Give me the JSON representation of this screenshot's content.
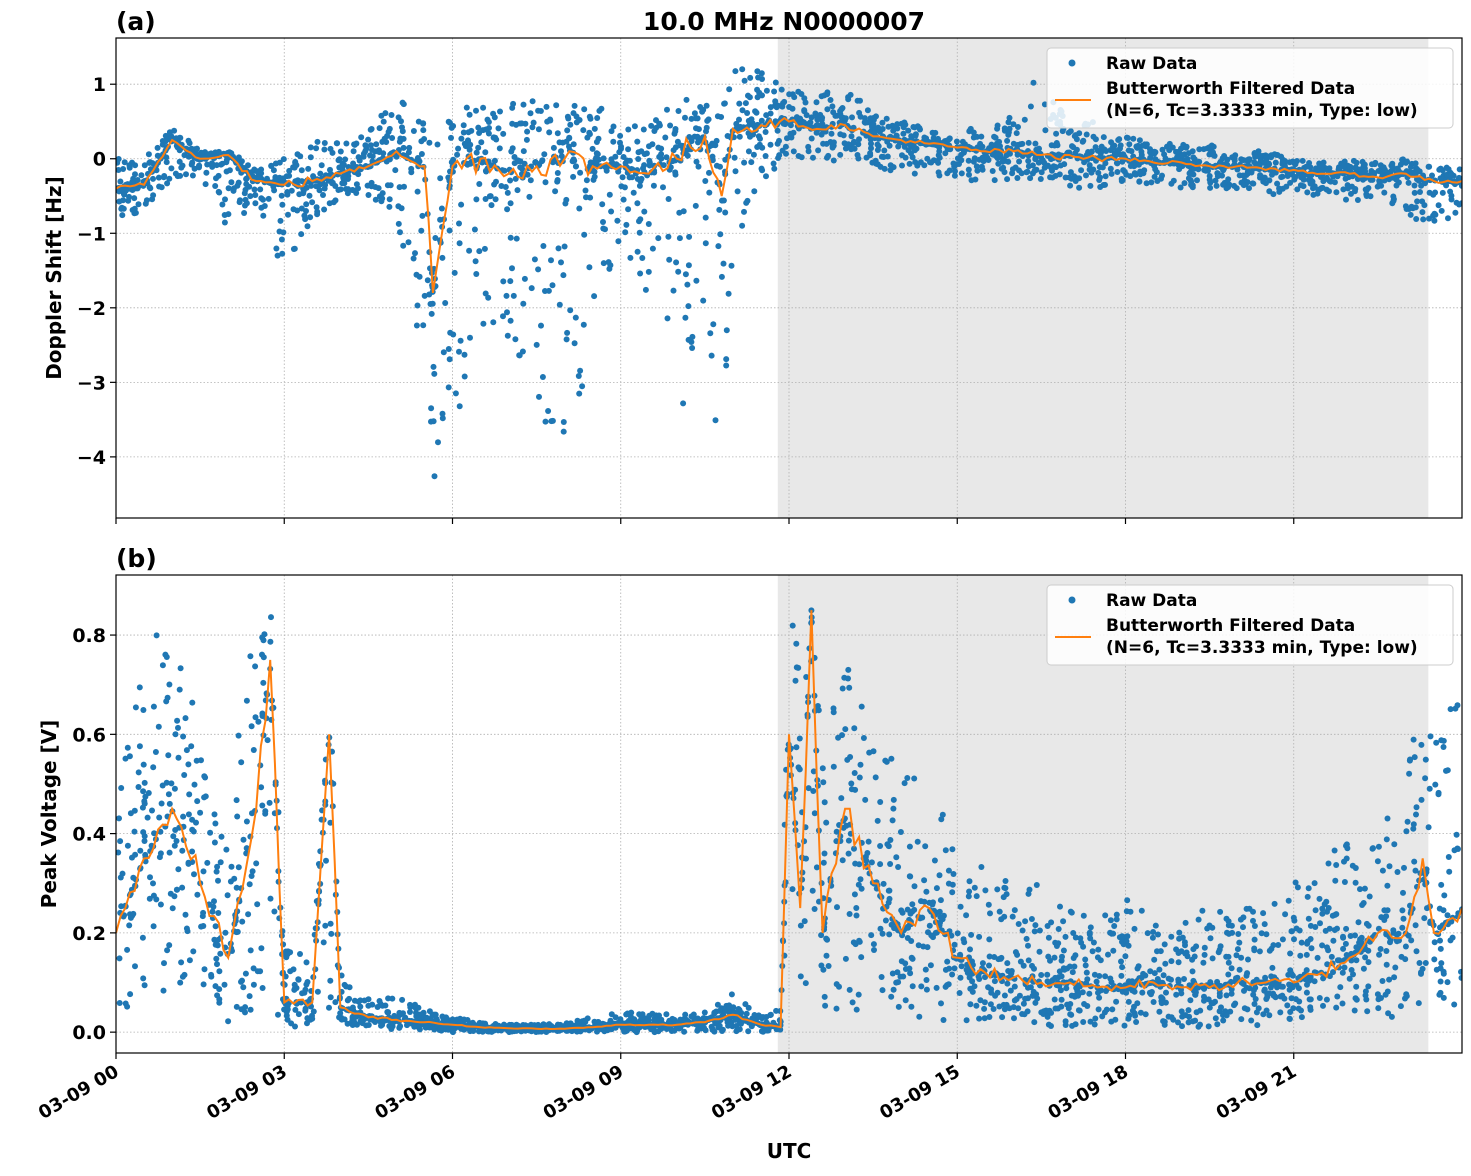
{
  "figure_title": "10.0 MHz N0000007",
  "shared_xlabel": "UTC",
  "colors": {
    "raw": "#1f77b4",
    "filtered": "#ff7f0e",
    "shade": "#e8e8e8",
    "grid": "#b0b0b0"
  },
  "chart_data": [
    {
      "type": "scatter",
      "panel_label": "(a)",
      "ylabel": "Doppler Shift [Hz]",
      "xlim": [
        "03-09 00:00",
        "03-10 00:00"
      ],
      "ylim": [
        -4.82,
        1.62
      ],
      "xticks": [
        "03-09 00:00",
        "03-09 03:00",
        "03-09 06:00",
        "03-09 09:00",
        "03-09 12:00",
        "03-09 15:00",
        "03-09 18:00",
        "03-09 21:00"
      ],
      "yticks": [
        -4,
        -3,
        -2,
        -1,
        0,
        1
      ],
      "ytick_labels": [
        "−4",
        "−3",
        "−2",
        "−1",
        "0",
        "1"
      ],
      "grid": true,
      "shaded_span": [
        "03-09 11:48",
        "03-09 23:24"
      ],
      "legend": {
        "placement": "top-right",
        "entries": [
          "Raw Data",
          "Butterworth Filtered Data",
          "(N=6, Tc=3.3333 min, Type: low)"
        ]
      },
      "x": [
        "03-09 00:00",
        "03-09 00:30",
        "03-09 01:00",
        "03-09 01:30",
        "03-09 02:00",
        "03-09 02:30",
        "03-09 03:00",
        "03-09 03:30",
        "03-09 04:00",
        "03-09 04:30",
        "03-09 05:00",
        "03-09 05:30",
        "03-09 05:39",
        "03-09 06:00",
        "03-09 06:30",
        "03-09 07:00",
        "03-09 07:30",
        "03-09 08:00",
        "03-09 08:30",
        "03-09 09:00",
        "03-09 09:30",
        "03-09 10:00",
        "03-09 10:30",
        "03-09 10:48",
        "03-09 11:00",
        "03-09 11:30",
        "03-09 12:00",
        "03-09 12:30",
        "03-09 13:00",
        "03-09 13:30",
        "03-09 14:00",
        "03-09 14:30",
        "03-09 15:00",
        "03-09 15:30",
        "03-09 16:00",
        "03-09 16:30",
        "03-09 17:00",
        "03-09 17:30",
        "03-09 18:00",
        "03-09 18:30",
        "03-09 19:00",
        "03-09 19:30",
        "03-09 20:00",
        "03-09 20:30",
        "03-09 21:00",
        "03-09 21:30",
        "03-09 22:00",
        "03-09 22:30",
        "03-09 23:00",
        "03-09 23:30",
        "03-10 00:00"
      ],
      "series": [
        {
          "name": "Butterworth Filtered Data",
          "kind": "line",
          "values": [
            -0.4,
            -0.35,
            0.25,
            0.0,
            0.05,
            -0.3,
            -0.35,
            -0.3,
            -0.2,
            -0.1,
            0.1,
            -0.1,
            -1.8,
            -0.1,
            0.0,
            -0.2,
            -0.1,
            0.0,
            -0.1,
            -0.1,
            -0.2,
            0.0,
            0.3,
            -0.5,
            0.4,
            0.45,
            0.5,
            0.4,
            0.45,
            0.3,
            0.25,
            0.2,
            0.15,
            0.1,
            0.1,
            0.05,
            0.05,
            0.0,
            0.0,
            -0.05,
            -0.05,
            -0.1,
            -0.1,
            -0.15,
            -0.15,
            -0.2,
            -0.2,
            -0.25,
            -0.2,
            -0.3,
            -0.3
          ]
        },
        {
          "name": "Raw Data",
          "kind": "scatter-envelope",
          "min": [
            -0.8,
            -0.7,
            -0.3,
            -0.2,
            -1.1,
            -0.6,
            -1.6,
            -0.9,
            -0.5,
            -0.5,
            -0.7,
            -3.0,
            -4.5,
            -3.8,
            -2.2,
            -2.5,
            -3.4,
            -3.9,
            -2.6,
            -1.0,
            -2.4,
            -3.7,
            -2.2,
            -4.3,
            -1.2,
            -0.3,
            0.0,
            0.0,
            -0.05,
            -0.1,
            -0.2,
            -0.3,
            -0.3,
            -0.3,
            -0.3,
            -0.3,
            -0.4,
            -0.4,
            -0.3,
            -0.4,
            -0.4,
            -0.4,
            -0.4,
            -0.5,
            -0.5,
            -0.5,
            -0.6,
            -0.6,
            -0.8,
            -0.9,
            -0.7
          ],
          "max": [
            0.0,
            0.0,
            0.4,
            0.15,
            0.1,
            -0.1,
            0.0,
            0.3,
            0.2,
            0.4,
            0.9,
            0.5,
            0.3,
            0.6,
            0.8,
            0.8,
            0.8,
            0.7,
            0.8,
            0.4,
            0.5,
            0.8,
            0.8,
            0.7,
            1.2,
            1.2,
            0.9,
            0.9,
            1.0,
            0.6,
            0.5,
            0.4,
            0.3,
            0.6,
            0.6,
            1.25,
            0.5,
            0.5,
            0.3,
            0.2,
            0.2,
            0.2,
            0.1,
            0.1,
            0.0,
            -0.05,
            0.0,
            -0.05,
            0.0,
            -0.1,
            -0.1
          ]
        }
      ]
    },
    {
      "type": "scatter",
      "panel_label": "(b)",
      "ylabel": "Peak Voltage [V]",
      "xlabel": "UTC",
      "xlim": [
        "03-09 00:00",
        "03-10 00:00"
      ],
      "ylim": [
        -0.042,
        0.921
      ],
      "xticks": [
        "03-09 00:00",
        "03-09 03:00",
        "03-09 06:00",
        "03-09 09:00",
        "03-09 12:00",
        "03-09 15:00",
        "03-09 18:00",
        "03-09 21:00"
      ],
      "xtick_labels": [
        "03-09 00",
        "03-09 03",
        "03-09 06",
        "03-09 09",
        "03-09 12",
        "03-09 15",
        "03-09 18",
        "03-09 21"
      ],
      "yticks": [
        0.0,
        0.2,
        0.4,
        0.6,
        0.8
      ],
      "ytick_labels": [
        "0.0",
        "0.2",
        "0.4",
        "0.6",
        "0.8"
      ],
      "grid": true,
      "shaded_span": [
        "03-09 11:48",
        "03-09 23:24"
      ],
      "legend": {
        "placement": "top-right",
        "entries": [
          "Raw Data",
          "Butterworth Filtered Data",
          "(N=6, Tc=3.3333 min, Type: low)"
        ]
      },
      "x": [
        "03-09 00:00",
        "03-09 00:30",
        "03-09 01:00",
        "03-09 01:30",
        "03-09 02:00",
        "03-09 02:30",
        "03-09 02:45",
        "03-09 03:00",
        "03-09 03:30",
        "03-09 03:48",
        "03-09 04:00",
        "03-09 04:30",
        "03-09 05:00",
        "03-09 05:30",
        "03-09 06:00",
        "03-09 06:30",
        "03-09 07:00",
        "03-09 07:30",
        "03-09 08:00",
        "03-09 08:30",
        "03-09 09:00",
        "03-09 09:30",
        "03-09 10:00",
        "03-09 10:30",
        "03-09 11:00",
        "03-09 11:30",
        "03-09 11:51",
        "03-09 12:00",
        "03-09 12:12",
        "03-09 12:24",
        "03-09 12:36",
        "03-09 13:00",
        "03-09 13:30",
        "03-09 14:00",
        "03-09 14:30",
        "03-09 15:00",
        "03-09 15:30",
        "03-09 16:00",
        "03-09 16:30",
        "03-09 17:00",
        "03-09 17:30",
        "03-09 18:00",
        "03-09 18:30",
        "03-09 19:00",
        "03-09 19:30",
        "03-09 20:00",
        "03-09 20:30",
        "03-09 21:00",
        "03-09 21:30",
        "03-09 22:00",
        "03-09 22:30",
        "03-09 23:00",
        "03-09 23:18",
        "03-09 23:30",
        "03-10 00:00"
      ],
      "series": [
        {
          "name": "Butterworth Filtered Data",
          "kind": "line",
          "values": [
            0.2,
            0.35,
            0.45,
            0.3,
            0.15,
            0.45,
            0.75,
            0.06,
            0.06,
            0.6,
            0.05,
            0.03,
            0.025,
            0.02,
            0.015,
            0.01,
            0.008,
            0.007,
            0.007,
            0.01,
            0.015,
            0.015,
            0.015,
            0.02,
            0.035,
            0.015,
            0.01,
            0.6,
            0.25,
            0.85,
            0.2,
            0.45,
            0.3,
            0.2,
            0.25,
            0.15,
            0.12,
            0.11,
            0.1,
            0.1,
            0.09,
            0.09,
            0.1,
            0.09,
            0.09,
            0.1,
            0.1,
            0.1,
            0.12,
            0.15,
            0.2,
            0.2,
            0.35,
            0.2,
            0.25
          ]
        },
        {
          "name": "Raw Data",
          "kind": "scatter-envelope",
          "min": [
            0.03,
            0.05,
            0.05,
            0.05,
            0.02,
            0.02,
            0.05,
            0.01,
            0.01,
            0.02,
            0.01,
            0.01,
            0.005,
            0.005,
            0.0,
            0.0,
            0.0,
            0.0,
            0.0,
            0.0,
            0.0,
            0.0,
            0.0,
            0.0,
            0.0,
            0.0,
            0.0,
            0.1,
            0.05,
            0.1,
            0.03,
            0.05,
            0.03,
            0.02,
            0.02,
            0.02,
            0.02,
            0.02,
            0.01,
            0.01,
            0.01,
            0.01,
            0.01,
            0.01,
            0.01,
            0.01,
            0.01,
            0.02,
            0.02,
            0.03,
            0.03,
            0.03,
            0.05,
            0.05,
            0.05
          ],
          "max": [
            0.45,
            0.77,
            0.86,
            0.6,
            0.45,
            0.85,
            0.88,
            0.17,
            0.15,
            0.73,
            0.12,
            0.07,
            0.07,
            0.05,
            0.03,
            0.02,
            0.015,
            0.015,
            0.02,
            0.03,
            0.04,
            0.04,
            0.035,
            0.04,
            0.08,
            0.03,
            0.05,
            0.85,
            0.8,
            0.83,
            0.6,
            0.75,
            0.6,
            0.58,
            0.55,
            0.4,
            0.35,
            0.3,
            0.3,
            0.25,
            0.22,
            0.28,
            0.22,
            0.23,
            0.25,
            0.25,
            0.26,
            0.3,
            0.4,
            0.38,
            0.4,
            0.6,
            0.65,
            0.6,
            0.7
          ]
        }
      ]
    }
  ]
}
